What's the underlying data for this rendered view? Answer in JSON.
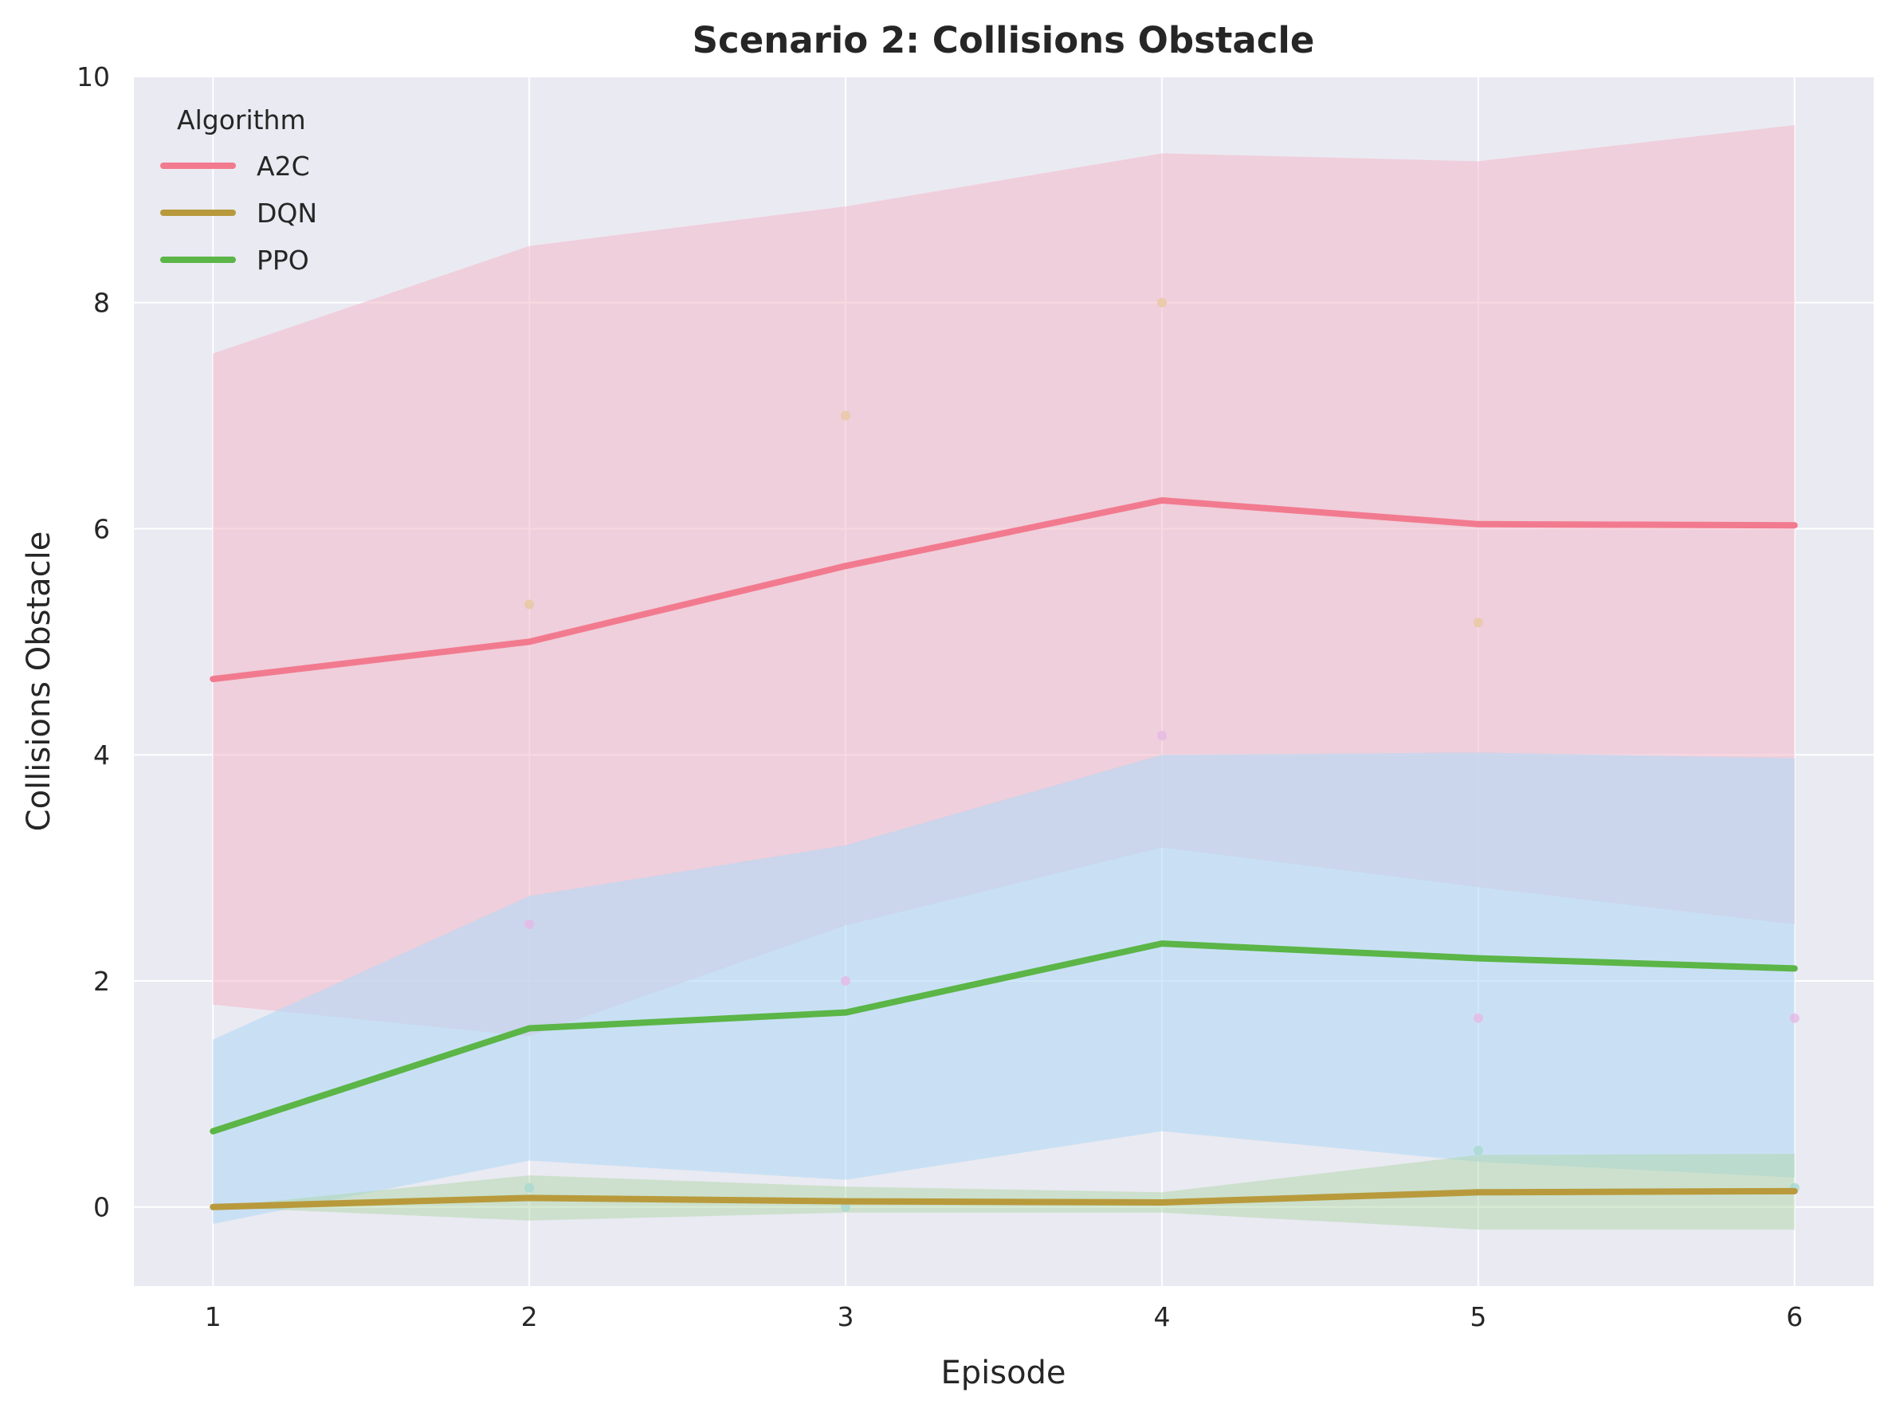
{
  "chart_data": {
    "type": "line",
    "title": "Scenario 2: Collisions Obstacle",
    "xlabel": "Episode",
    "ylabel": "Collisions Obstacle",
    "x": [
      1,
      2,
      3,
      4,
      5,
      6
    ],
    "xlim": [
      0.75,
      6.25
    ],
    "ylim": [
      -0.7,
      10
    ],
    "xticks": [
      1,
      2,
      3,
      4,
      5,
      6
    ],
    "yticks": [
      0,
      2,
      4,
      6,
      8,
      10
    ],
    "grid": true,
    "legend": {
      "title": "Algorithm",
      "placement": "top-left"
    },
    "series": [
      {
        "name": "A2C",
        "color": "#f27a8f",
        "values": [
          4.67,
          5.0,
          5.67,
          6.25,
          6.04,
          6.03
        ]
      },
      {
        "name": "DQN",
        "color": "#b89a3c",
        "values": [
          0.0,
          0.08,
          0.05,
          0.04,
          0.13,
          0.14
        ]
      },
      {
        "name": "PPO",
        "color": "#5bb547",
        "values": [
          0.67,
          1.58,
          1.72,
          2.33,
          2.2,
          2.11
        ]
      }
    ],
    "bands": [
      {
        "color": "#f2b8c8",
        "opacity": 0.55,
        "lower": [
          1.79,
          1.51,
          2.49,
          3.18,
          2.83,
          2.5
        ],
        "upper": [
          7.55,
          8.5,
          8.85,
          9.32,
          9.25,
          9.57
        ]
      },
      {
        "color": "#b3d8f5",
        "opacity": 0.6,
        "lower": [
          -0.15,
          0.41,
          0.24,
          0.67,
          0.4,
          0.26
        ],
        "upper": [
          1.48,
          2.75,
          3.2,
          4.0,
          4.02,
          3.97
        ]
      },
      {
        "color": "#a9d4a0",
        "opacity": 0.45,
        "lower": [
          0.0,
          -0.12,
          -0.05,
          -0.05,
          -0.2,
          -0.2
        ],
        "upper": [
          0.0,
          0.28,
          0.18,
          0.13,
          0.46,
          0.47
        ]
      }
    ],
    "scatter": [
      {
        "color": "#e8c8a0",
        "points": [
          [
            2,
            5.33
          ],
          [
            3,
            7.0
          ],
          [
            4,
            8.0
          ],
          [
            5,
            5.17
          ]
        ]
      },
      {
        "color": "#e6b8e6",
        "points": [
          [
            2,
            2.5
          ],
          [
            3,
            2.0
          ],
          [
            4,
            4.17
          ],
          [
            5,
            1.67
          ],
          [
            6,
            1.67
          ]
        ]
      },
      {
        "color": "#a8d8d0",
        "points": [
          [
            2,
            0.17
          ],
          [
            3,
            0.0
          ],
          [
            5,
            0.5
          ],
          [
            6,
            0.17
          ]
        ]
      }
    ]
  }
}
